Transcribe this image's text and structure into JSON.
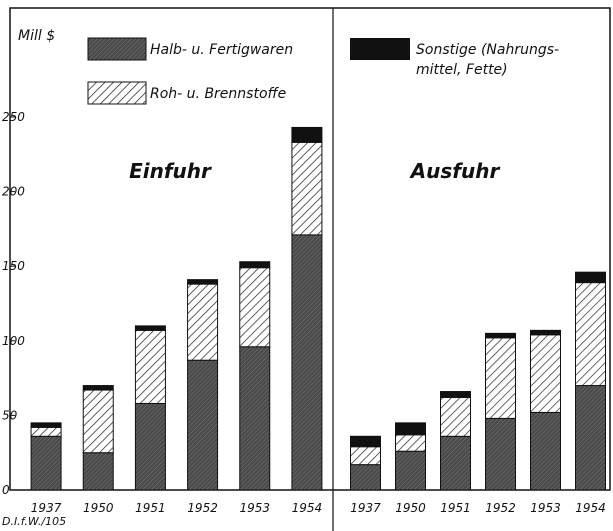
{
  "chart_data": [
    {
      "type": "stacked_bar",
      "title": "Einfuhr",
      "y_label": "Mill $",
      "source": "D.I.f.W./105",
      "categories": [
        "1937",
        "1950",
        "1951",
        "1952",
        "1953",
        "1954"
      ],
      "series": [
        {
          "name": "Halb- u. Fertigwaren",
          "color": "#555555",
          "values": [
            36,
            25,
            58,
            87,
            96,
            171
          ]
        },
        {
          "name": "Roh- u. Brennstoffe",
          "color": "hatch",
          "values": [
            6,
            42,
            49,
            51,
            53,
            62
          ]
        },
        {
          "name": "Sonstige (Nahrungs- mittel, Fette)",
          "color": "#111111",
          "values": [
            3,
            3,
            3,
            3,
            4,
            10
          ]
        }
      ],
      "ylim": [
        0,
        250
      ],
      "yticks": [
        0,
        50,
        100,
        150,
        200,
        250
      ]
    },
    {
      "type": "stacked_bar",
      "title": "Ausfuhr",
      "categories": [
        "1937",
        "1950",
        "1951",
        "1952",
        "1953",
        "1954"
      ],
      "series": [
        {
          "name": "Halb- u. Fertigwaren",
          "color": "#555555",
          "values": [
            17,
            26,
            36,
            48,
            52,
            70
          ]
        },
        {
          "name": "Roh- u. Brennstoffe",
          "color": "hatch",
          "values": [
            12,
            11,
            26,
            54,
            52,
            69
          ]
        },
        {
          "name": "Sonstige (Nahrungs- mittel, Fette)",
          "color": "#111111",
          "values": [
            7,
            8,
            4,
            3,
            3,
            7
          ]
        }
      ],
      "ylim": [
        0,
        250
      ]
    }
  ]
}
